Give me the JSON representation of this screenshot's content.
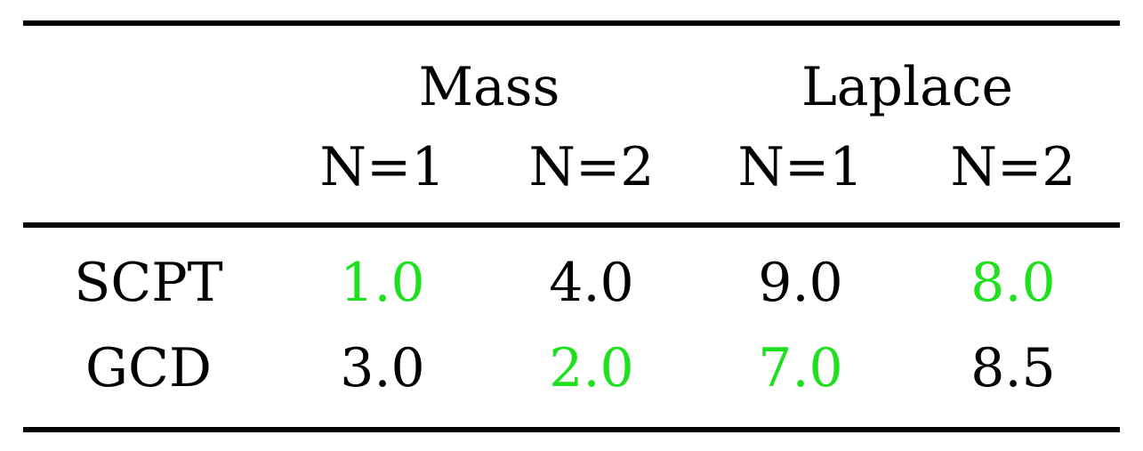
{
  "table": {
    "groups": [
      "Mass",
      "Laplace"
    ],
    "subheaders": [
      "N=1",
      "N=2",
      "N=1",
      "N=2"
    ],
    "rows": [
      {
        "label": "SCPT",
        "values": [
          "1.0",
          "4.0",
          "9.0",
          "8.0"
        ],
        "highlight": [
          true,
          false,
          false,
          true
        ]
      },
      {
        "label": "GCD",
        "values": [
          "3.0",
          "2.0",
          "7.0",
          "8.5"
        ],
        "highlight": [
          false,
          true,
          true,
          false
        ]
      }
    ],
    "highlight_color": "#1ee01e",
    "text_color": "#000000"
  }
}
